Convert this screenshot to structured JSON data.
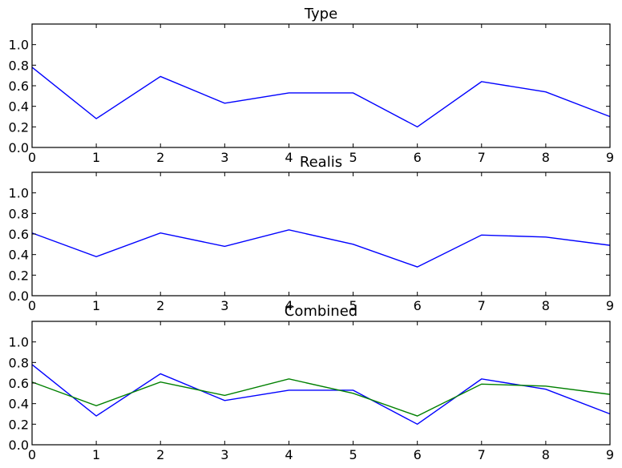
{
  "chart_data": [
    {
      "type": "line",
      "title": "Type",
      "x": [
        0,
        1,
        2,
        3,
        4,
        5,
        6,
        7,
        8,
        9
      ],
      "xlim": [
        0,
        9
      ],
      "ylim": [
        0,
        1.2
      ],
      "xticks": [
        "0",
        "1",
        "2",
        "3",
        "4",
        "5",
        "6",
        "7",
        "8",
        "9"
      ],
      "yticks": [
        "0.0",
        "0.2",
        "0.4",
        "0.6",
        "0.8",
        "1.0"
      ],
      "grid": false,
      "series": [
        {
          "color": "#0000ff",
          "values": [
            0.78,
            0.28,
            0.69,
            0.43,
            0.53,
            0.53,
            0.2,
            0.64,
            0.54,
            0.3
          ]
        }
      ]
    },
    {
      "type": "line",
      "title": "Realis",
      "x": [
        0,
        1,
        2,
        3,
        4,
        5,
        6,
        7,
        8,
        9
      ],
      "xlim": [
        0,
        9
      ],
      "ylim": [
        0,
        1.2
      ],
      "xticks": [
        "0",
        "1",
        "2",
        "3",
        "4",
        "5",
        "6",
        "7",
        "8",
        "9"
      ],
      "yticks": [
        "0.0",
        "0.2",
        "0.4",
        "0.6",
        "0.8",
        "1.0"
      ],
      "grid": false,
      "series": [
        {
          "color": "#0000ff",
          "values": [
            0.61,
            0.38,
            0.61,
            0.48,
            0.64,
            0.5,
            0.28,
            0.59,
            0.57,
            0.49
          ]
        }
      ]
    },
    {
      "type": "line",
      "title": "Combined",
      "x": [
        0,
        1,
        2,
        3,
        4,
        5,
        6,
        7,
        8,
        9
      ],
      "xlim": [
        0,
        9
      ],
      "ylim": [
        0,
        1.2
      ],
      "xticks": [
        "0",
        "1",
        "2",
        "3",
        "4",
        "5",
        "6",
        "7",
        "8",
        "9"
      ],
      "yticks": [
        "0.0",
        "0.2",
        "0.4",
        "0.6",
        "0.8",
        "1.0"
      ],
      "grid": false,
      "series": [
        {
          "color": "#0000ff",
          "values": [
            0.78,
            0.28,
            0.69,
            0.43,
            0.53,
            0.53,
            0.2,
            0.64,
            0.54,
            0.3
          ]
        },
        {
          "color": "#008000",
          "values": [
            0.61,
            0.38,
            0.61,
            0.48,
            0.64,
            0.5,
            0.28,
            0.59,
            0.57,
            0.49
          ]
        }
      ]
    }
  ]
}
